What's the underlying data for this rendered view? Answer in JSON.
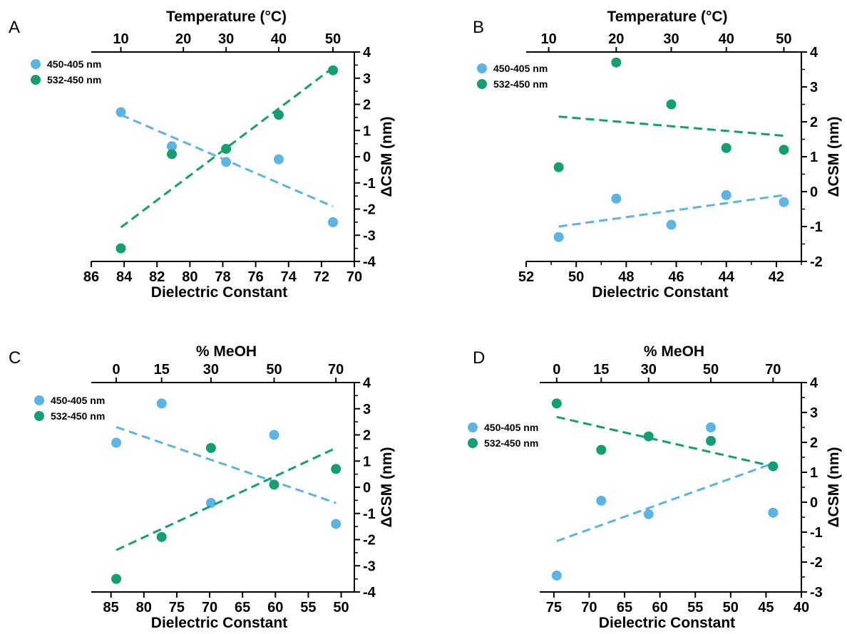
{
  "colors": {
    "blue": "#5ab4e4",
    "green": "#12a073",
    "axis": "#000000"
  },
  "legend": [
    "450-405 nm",
    "532-450 nm"
  ],
  "chart_data": [
    {
      "panel": "A",
      "type": "scatter",
      "xlabel": "Dielectric Constant",
      "top_label": "Temperature (°C)",
      "ylabel": "ΔCSM (nm)",
      "xlim": [
        86,
        70
      ],
      "ylim": [
        -4,
        4
      ],
      "x_ticks": [
        86,
        84,
        82,
        80,
        78,
        76,
        74,
        72,
        70
      ],
      "x_minor": [],
      "y_ticks": [
        4,
        3,
        2,
        1,
        0,
        -1,
        -2,
        -3,
        -4
      ],
      "top_ticks": [
        {
          "x": 84.2,
          "label": "10"
        },
        {
          "x": 80.4,
          "label": "20"
        },
        {
          "x": 77.8,
          "label": "30"
        },
        {
          "x": 74.6,
          "label": "40"
        },
        {
          "x": 71.3,
          "label": "50"
        }
      ],
      "series": [
        {
          "name": "450-405 nm",
          "x": [
            84.2,
            81.1,
            77.8,
            74.6,
            71.3
          ],
          "y": [
            1.7,
            0.4,
            -0.2,
            -0.1,
            -2.5
          ],
          "fit": [
            [
              84.2,
              1.6
            ],
            [
              71.3,
              -1.9
            ]
          ]
        },
        {
          "name": "532-450 nm",
          "x": [
            84.2,
            81.1,
            77.8,
            74.6,
            71.3
          ],
          "y": [
            -3.5,
            0.1,
            0.3,
            1.6,
            3.3
          ],
          "fit": [
            [
              84.2,
              -2.7
            ],
            [
              71.3,
              3.4
            ]
          ]
        }
      ]
    },
    {
      "panel": "B",
      "type": "scatter",
      "xlabel": "Dielectric Constant",
      "top_label": "Temperature (°C)",
      "ylabel": "ΔCSM (nm)",
      "xlim": [
        52,
        41
      ],
      "ylim": [
        -2,
        4
      ],
      "x_ticks": [
        52,
        50,
        48,
        46,
        44,
        42
      ],
      "x_minor": [
        51,
        49,
        47,
        45,
        43,
        41
      ],
      "y_ticks": [
        4,
        3,
        2,
        1,
        0,
        -1,
        -2
      ],
      "top_ticks": [
        {
          "x": 51.1,
          "label": "10"
        },
        {
          "x": 48.4,
          "label": "20"
        },
        {
          "x": 46.2,
          "label": "30"
        },
        {
          "x": 44,
          "label": "40"
        },
        {
          "x": 41.7,
          "label": "50"
        }
      ],
      "series": [
        {
          "name": "450-405 nm",
          "x": [
            50.7,
            48.4,
            46.2,
            44,
            41.7
          ],
          "y": [
            -1.3,
            -0.2,
            -0.95,
            -0.1,
            -0.3
          ],
          "fit": [
            [
              50.7,
              -1.0
            ],
            [
              41.7,
              -0.1
            ]
          ]
        },
        {
          "name": "532-450 nm",
          "x": [
            50.7,
            48.4,
            46.2,
            44,
            41.7
          ],
          "y": [
            0.7,
            3.7,
            2.5,
            1.25,
            1.2
          ],
          "fit": [
            [
              50.7,
              2.15
            ],
            [
              41.7,
              1.6
            ]
          ]
        }
      ]
    },
    {
      "panel": "C",
      "type": "scatter",
      "xlabel": "Dielectric Constant",
      "top_label": "% MeOH",
      "ylabel": "ΔCSM (nm)",
      "xlim": [
        88,
        48
      ],
      "ylim": [
        -4,
        4
      ],
      "x_ticks": [
        85,
        80,
        75,
        70,
        65,
        60,
        55,
        50
      ],
      "x_minor": [],
      "y_ticks": [
        4,
        3,
        2,
        1,
        0,
        -1,
        -2,
        -3,
        -4
      ],
      "top_ticks": [
        {
          "x": 84.2,
          "label": "0"
        },
        {
          "x": 77.3,
          "label": "15"
        },
        {
          "x": 69.8,
          "label": "30"
        },
        {
          "x": 60.2,
          "label": "50"
        },
        {
          "x": 50.8,
          "label": "70"
        }
      ],
      "series": [
        {
          "name": "450-405 nm",
          "x": [
            84.2,
            77.3,
            69.8,
            60.2,
            50.8
          ],
          "y": [
            1.7,
            3.2,
            -0.6,
            2.0,
            -1.4
          ],
          "fit": [
            [
              84.2,
              2.3
            ],
            [
              50.8,
              -0.6
            ]
          ]
        },
        {
          "name": "532-450 nm",
          "x": [
            84.2,
            77.3,
            69.8,
            60.2,
            50.8
          ],
          "y": [
            -3.5,
            -1.9,
            1.5,
            0.1,
            0.7
          ],
          "fit": [
            [
              84.2,
              -2.4
            ],
            [
              50.8,
              1.5
            ]
          ]
        }
      ]
    },
    {
      "panel": "D",
      "type": "scatter",
      "xlabel": "Dielectric Constant",
      "top_label": "% MeOH",
      "ylabel": "ΔCSM (nm)",
      "xlim": [
        77,
        40
      ],
      "ylim": [
        -3,
        4
      ],
      "x_ticks": [
        75,
        70,
        65,
        60,
        55,
        50,
        45,
        40
      ],
      "x_minor": [],
      "y_ticks": [
        4,
        3,
        2,
        1,
        0,
        -1,
        -2,
        -3
      ],
      "top_ticks": [
        {
          "x": 74.6,
          "label": "0"
        },
        {
          "x": 68.3,
          "label": "15"
        },
        {
          "x": 61.6,
          "label": "30"
        },
        {
          "x": 52.8,
          "label": "50"
        },
        {
          "x": 44,
          "label": "70"
        }
      ],
      "series": [
        {
          "name": "450-405 nm",
          "x": [
            74.6,
            68.3,
            61.6,
            52.8,
            44
          ],
          "y": [
            -2.45,
            0.05,
            -0.4,
            2.5,
            -0.35
          ],
          "fit": [
            [
              74.6,
              -1.3
            ],
            [
              44,
              1.3
            ]
          ]
        },
        {
          "name": "532-450 nm",
          "x": [
            74.6,
            68.3,
            61.6,
            52.8,
            44
          ],
          "y": [
            3.3,
            1.75,
            2.2,
            2.05,
            1.2
          ],
          "fit": [
            [
              74.6,
              2.85
            ],
            [
              44,
              1.2
            ]
          ]
        }
      ]
    }
  ]
}
